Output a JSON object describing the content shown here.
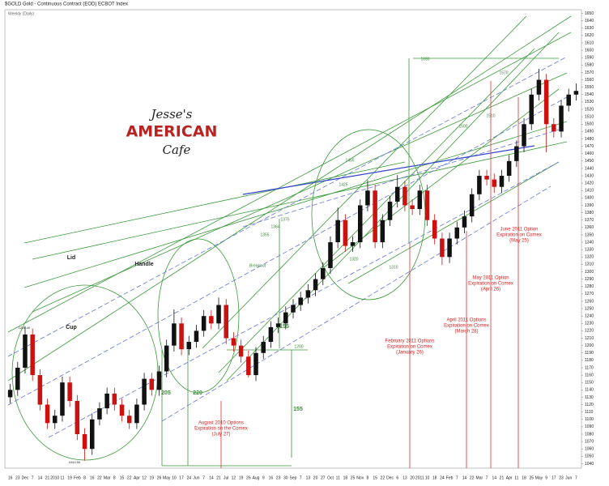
{
  "title": "$GOLD Gold - Continuous Contract (EOD) ECBOT Index",
  "subtitle": "Weekly (Daily)",
  "logo": {
    "line1": "Jesse's",
    "line2": "AMERICAN",
    "line3": "Cafe"
  },
  "chart_data": {
    "type": "candlestick",
    "categories": [
      "16",
      "23",
      "Dec",
      "7",
      "14",
      "21",
      "2010",
      "11",
      "19",
      "Feb",
      "8",
      "16",
      "22",
      "Mar",
      "8",
      "15",
      "22",
      "Apr",
      "12",
      "19",
      "26",
      "May",
      "10",
      "17",
      "24",
      "Jun",
      "7",
      "14",
      "21",
      "Jul",
      "12",
      "19",
      "26",
      "Aug",
      "9",
      "16",
      "23",
      "30",
      "Sep",
      "7",
      "13",
      "20",
      "27",
      "Oct",
      "11",
      "18",
      "25",
      "Nov",
      "8",
      "15",
      "22",
      "Dec",
      "6",
      "13",
      "20",
      "2011",
      "10",
      "18",
      "24",
      "Feb",
      "7",
      "14",
      "22",
      "Mar",
      "7",
      "14",
      "21",
      "Apr",
      "11",
      "18",
      "25",
      "May",
      "9",
      "17",
      "23",
      "Jun",
      "7"
    ],
    "open": [
      1130,
      1140,
      1170,
      1215,
      1160,
      1120,
      1095,
      1105,
      1150,
      1125,
      1080,
      1060,
      1100,
      1115,
      1135,
      1120,
      1105,
      1095,
      1120,
      1155,
      1140,
      1165,
      1200,
      1230,
      1195,
      1205,
      1220,
      1240,
      1230,
      1255,
      1210,
      1200,
      1185,
      1160,
      1190,
      1205,
      1225,
      1230,
      1245,
      1255,
      1265,
      1275,
      1290,
      1305,
      1340,
      1370,
      1335,
      1340,
      1390,
      1410,
      1340,
      1370,
      1395,
      1415,
      1390,
      1385,
      1410,
      1370,
      1345,
      1320,
      1345,
      1360,
      1375,
      1405,
      1430,
      1425,
      1415,
      1430,
      1450,
      1470,
      1500,
      1540,
      1560,
      1500,
      1490,
      1525,
      1540
    ],
    "high": [
      1148,
      1178,
      1226,
      1223,
      1168,
      1128,
      1113,
      1158,
      1158,
      1133,
      1088,
      1108,
      1123,
      1143,
      1143,
      1128,
      1113,
      1128,
      1163,
      1163,
      1173,
      1208,
      1249,
      1238,
      1213,
      1228,
      1248,
      1248,
      1265,
      1263,
      1218,
      1208,
      1193,
      1198,
      1213,
      1233,
      1238,
      1253,
      1263,
      1273,
      1283,
      1298,
      1313,
      1348,
      1387,
      1378,
      1348,
      1398,
      1424,
      1418,
      1378,
      1403,
      1431,
      1423,
      1398,
      1418,
      1418,
      1378,
      1353,
      1353,
      1368,
      1383,
      1413,
      1438,
      1438,
      1433,
      1438,
      1458,
      1478,
      1508,
      1548,
      1575,
      1568,
      1508,
      1533,
      1548,
      1555
    ],
    "low": [
      1122,
      1132,
      1162,
      1152,
      1112,
      1087,
      1087,
      1097,
      1117,
      1072,
      1044,
      1052,
      1092,
      1107,
      1112,
      1097,
      1087,
      1087,
      1112,
      1132,
      1132,
      1157,
      1192,
      1187,
      1187,
      1197,
      1212,
      1222,
      1222,
      1202,
      1192,
      1177,
      1157,
      1152,
      1182,
      1197,
      1217,
      1222,
      1237,
      1247,
      1257,
      1267,
      1282,
      1297,
      1332,
      1327,
      1327,
      1332,
      1382,
      1332,
      1332,
      1362,
      1387,
      1382,
      1377,
      1377,
      1362,
      1337,
      1309,
      1312,
      1337,
      1352,
      1367,
      1397,
      1417,
      1407,
      1407,
      1422,
      1442,
      1462,
      1492,
      1532,
      1462,
      1482,
      1482,
      1517,
      1532
    ],
    "close": [
      1140,
      1170,
      1215,
      1160,
      1120,
      1095,
      1105,
      1150,
      1125,
      1080,
      1060,
      1100,
      1115,
      1135,
      1120,
      1105,
      1095,
      1120,
      1155,
      1140,
      1165,
      1200,
      1230,
      1195,
      1205,
      1220,
      1240,
      1230,
      1255,
      1210,
      1200,
      1185,
      1160,
      1190,
      1205,
      1225,
      1230,
      1245,
      1255,
      1265,
      1275,
      1290,
      1305,
      1340,
      1370,
      1335,
      1340,
      1390,
      1410,
      1340,
      1370,
      1395,
      1415,
      1390,
      1385,
      1410,
      1370,
      1345,
      1320,
      1345,
      1360,
      1375,
      1405,
      1430,
      1425,
      1415,
      1430,
      1450,
      1470,
      1500,
      1540,
      1560,
      1500,
      1490,
      1525,
      1540,
      1545
    ],
    "up_color": "#111111",
    "down_color": "#cc1111",
    "ylim": [
      1035,
      1655
    ],
    "yticks": [
      1040,
      1050,
      1060,
      1070,
      1080,
      1090,
      1100,
      1110,
      1120,
      1130,
      1140,
      1150,
      1160,
      1170,
      1180,
      1190,
      1200,
      1210,
      1220,
      1230,
      1240,
      1250,
      1260,
      1270,
      1280,
      1290,
      1300,
      1310,
      1320,
      1330,
      1340,
      1350,
      1360,
      1370,
      1380,
      1390,
      1400,
      1410,
      1420,
      1430,
      1440,
      1450,
      1460,
      1470,
      1480,
      1490,
      1500,
      1510,
      1520,
      1530,
      1540,
      1550,
      1560,
      1570,
      1580,
      1590,
      1600,
      1610,
      1620,
      1630,
      1640,
      1650
    ],
    "annotations": [
      {
        "lines": [
          "Lid"
        ]
      },
      {
        "lines": [
          "Handle"
        ]
      },
      {
        "lines": [
          "Cup"
        ]
      },
      {
        "lines": [
          "Breakout"
        ]
      },
      {
        "lines": [
          "205"
        ]
      },
      {
        "lines": [
          "220"
        ]
      },
      {
        "lines": [
          "155"
        ]
      },
      {
        "lines": [
          "155"
        ]
      },
      {
        "lines": [
          "1200"
        ]
      },
      {
        "lines": [
          "1690"
        ]
      },
      {
        "lines": [
          "1570"
        ]
      },
      {
        "lines": [
          "1510"
        ]
      },
      {
        "lines": [
          "1500"
        ]
      },
      {
        "lines": [
          "1455"
        ]
      },
      {
        "lines": [
          "1425"
        ]
      },
      {
        "lines": [
          "1375"
        ]
      },
      {
        "lines": [
          "1364"
        ]
      },
      {
        "lines": [
          "1355"
        ]
      },
      {
        "lines": [
          "1320"
        ]
      },
      {
        "lines": [
          "1310"
        ]
      },
      {
        "lines": [
          "1226.40"
        ]
      },
      {
        "lines": [
          "1044.50"
        ]
      },
      {
        "lines": [
          "August 2010 Options",
          "Expiration on the Comex",
          "(July 27)"
        ]
      },
      {
        "lines": [
          "February 2011 Options",
          "Expiration on Comex",
          "(January 26)"
        ]
      },
      {
        "lines": [
          "April 2011 Options",
          "Expiration on Comex",
          "(March 28)"
        ]
      },
      {
        "lines": [
          "May 2011 Option",
          "Expiration on Comex",
          "(April 26)"
        ]
      },
      {
        "lines": [
          "June 2011 Option",
          "Expiration on Comex",
          "(May 25)"
        ]
      }
    ]
  }
}
